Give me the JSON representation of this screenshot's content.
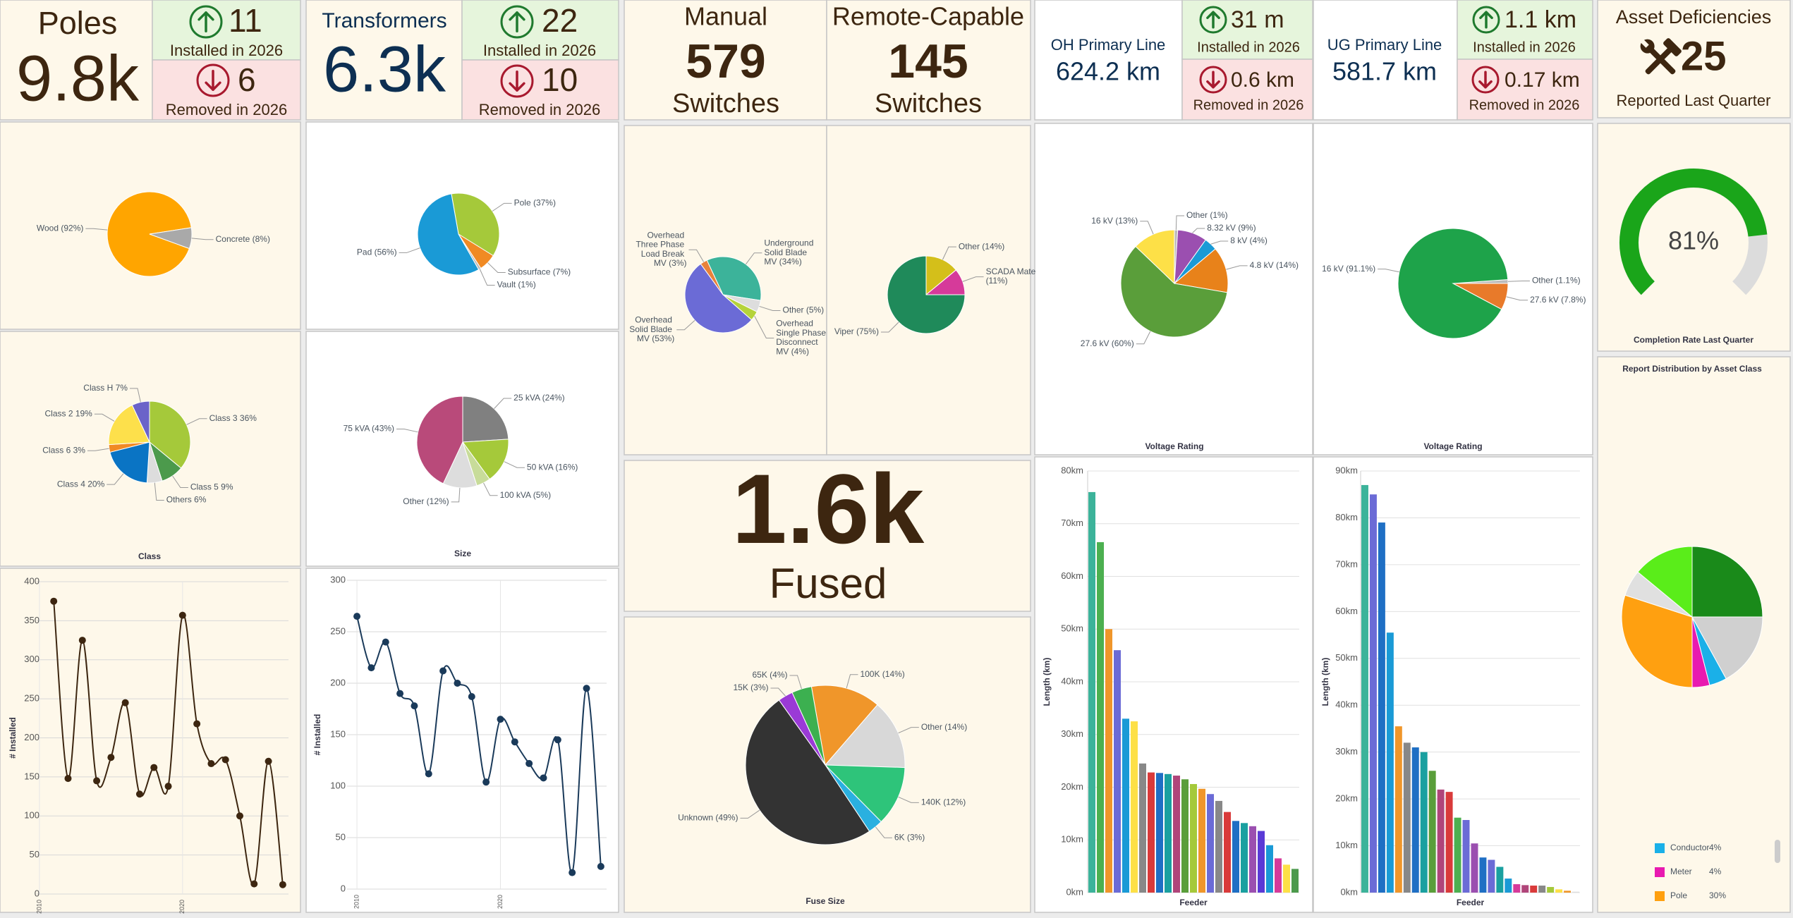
{
  "kpis": {
    "poles": {
      "title": "Poles",
      "total": "9.8k",
      "installed": 11,
      "installed_label": "Installed in 2026",
      "removed": 6,
      "removed_label": "Removed in 2026"
    },
    "transformers": {
      "title": "Transformers",
      "total": "6.3k",
      "installed": 22,
      "installed_label": "Installed in 2026",
      "removed": 10,
      "removed_label": "Removed in 2026"
    },
    "switches": {
      "manual": {
        "title": "Manual",
        "count": 579,
        "unit": "Switches"
      },
      "remote": {
        "title": "Remote-Capable",
        "count": 145,
        "unit": "Switches"
      }
    },
    "fused": {
      "count": "1.6k",
      "label": "Fused"
    },
    "oh_line": {
      "title": "OH Primary Line",
      "total": "624.2 km",
      "installed": "31 m",
      "installed_label": "Installed in 2026",
      "removed": "0.6 km",
      "removed_label": "Removed in 2026"
    },
    "ug_line": {
      "title": "UG Primary Line",
      "total": "581.7 km",
      "installed": "1.1 km",
      "installed_label": "Installed in 2026",
      "removed": "0.17 km",
      "removed_label": "Removed in 2026"
    },
    "deficiencies": {
      "title": "Asset Deficiencies",
      "count": 25,
      "label": "Reported Last Quarter"
    }
  },
  "chart_data": [
    {
      "type": "pie",
      "categories": [
        "Wood (92%)",
        "Concrete (8%)"
      ],
      "values": [
        92,
        8
      ],
      "colors": [
        "#ffa500",
        "#a9a9a9"
      ]
    },
    {
      "type": "pie",
      "title": "Class",
      "categories": [
        "Class 3 36%",
        "Class 5 9%",
        "Others 6%",
        "Class 4 20%",
        "Class 6 3%",
        "Class 2 19%",
        "Class H 7%"
      ],
      "values": [
        36,
        9,
        6,
        20,
        3,
        19,
        7
      ],
      "colors": [
        "#a5c93a",
        "#4c9a4c",
        "#dddddd",
        "#0a74c4",
        "#f08a24",
        "#fde04b",
        "#6b63c9"
      ]
    },
    {
      "type": "line",
      "ylabel": "# Installed",
      "x": [
        2011,
        2012,
        2013,
        2014,
        2015,
        2016,
        2017,
        2018,
        2019,
        2020,
        2021,
        2022,
        2023,
        2024,
        2025,
        2026,
        2027
      ],
      "values": [
        375,
        148,
        325,
        145,
        175,
        245,
        128,
        162,
        138,
        357,
        218,
        167,
        172,
        100,
        13,
        170,
        12
      ],
      "color": "#3d2610",
      "xlim": [
        2010.3,
        2027.4
      ],
      "xticks": [
        2010,
        2020
      ],
      "ylim": [
        0,
        400
      ],
      "yticks": [
        0,
        50,
        100,
        150,
        200,
        250,
        300,
        350,
        400
      ],
      "grid": true
    },
    {
      "type": "pie",
      "categories": [
        "Pole (37%)",
        "Subsurface (7%)",
        "Vault (1%)",
        "Pad (56%)"
      ],
      "values": [
        37,
        7,
        1,
        56
      ],
      "colors": [
        "#a5c93a",
        "#f08a24",
        "#bbbbbb",
        "#1a9ad6"
      ]
    },
    {
      "type": "pie",
      "title": "Size",
      "categories": [
        "25 kVA (24%)",
        "50 kVA (16%)",
        "100 kVA (5%)",
        "Other (12%)",
        "75 kVA (43%)"
      ],
      "values": [
        24,
        16,
        5,
        12,
        43
      ],
      "colors": [
        "#808080",
        "#a5c93a",
        "#c8dc9a",
        "#dddddd",
        "#b94a7a"
      ]
    },
    {
      "type": "line",
      "ylabel": "# Installed",
      "x": [
        2010,
        2011,
        2012,
        2013,
        2014,
        2015,
        2016,
        2017,
        2018,
        2019,
        2020,
        2021,
        2022,
        2023,
        2024,
        2025,
        2026,
        2027
      ],
      "values": [
        265,
        215,
        240,
        190,
        178,
        112,
        212,
        200,
        187,
        104,
        165,
        143,
        122,
        108,
        145,
        16,
        195,
        22
      ],
      "color": "#1a3a5a",
      "xlim": [
        2009.8,
        2027.4
      ],
      "xticks": [
        2010,
        2020
      ],
      "ylim": [
        0,
        300
      ],
      "yticks": [
        0,
        50,
        100,
        150,
        200,
        250,
        300
      ],
      "grid": true
    },
    {
      "type": "pie",
      "categories": [
        "Underground Solid Blade MV (34%)",
        "Other (5%)",
        "Overhead Single Phase Disconnect MV (4%)",
        "Overhead Solid Blade MV (53%)",
        "Overhead Three Phase Load Break MV (3%)"
      ],
      "values": [
        34,
        5,
        4,
        53,
        3
      ],
      "colors": [
        "#3cb39a",
        "#dddddd",
        "#b5d33a",
        "#6b6bd6",
        "#e8823a"
      ]
    },
    {
      "type": "pie",
      "categories": [
        "Other (14%)",
        "SCADA Mate (11%)",
        "Viper (75%)"
      ],
      "values": [
        14,
        11,
        75
      ],
      "colors": [
        "#d4bf1a",
        "#d63a9a",
        "#1f8a5a"
      ]
    },
    {
      "type": "pie",
      "title": "Fuse Size",
      "categories": [
        "100K (14%)",
        "Other (14%)",
        "140K (12%)",
        "6K (3%)",
        "Unknown (49%)",
        "15K (3%)",
        "65K (4%)"
      ],
      "values": [
        14,
        14,
        12,
        3,
        49,
        3,
        4
      ],
      "colors": [
        "#f0962a",
        "#d8d8d8",
        "#2ec47a",
        "#2ab0e0",
        "#333333",
        "#9a3ad6",
        "#3cb050"
      ]
    },
    {
      "type": "pie",
      "title": "Voltage Rating",
      "categories": [
        "Other (1%)",
        "8.32 kV (9%)",
        "8 kV (4%)",
        "4.8 kV (14%)",
        "27.6 kV (60%)",
        "16 kV (13%)"
      ],
      "values": [
        1,
        9,
        4,
        14,
        60,
        13
      ],
      "colors": [
        "#bbbbbb",
        "#9b4fb0",
        "#1a9ad6",
        "#e8821a",
        "#5a9e3a",
        "#fde047"
      ]
    },
    {
      "type": "pie",
      "title": "Voltage Rating",
      "categories": [
        "Other (1.1%)",
        "27.6 kV (7.8%)",
        "16 kV (91.1%)"
      ],
      "values": [
        1.1,
        7.8,
        91.1
      ],
      "colors": [
        "#bbbbbb",
        "#e87a2a",
        "#1ea34a"
      ]
    },
    {
      "type": "bar",
      "ylabel": "Length (km)",
      "xlabel": "Feeder",
      "categories": [
        null,
        null,
        null,
        null,
        null,
        null,
        null,
        null,
        null,
        null,
        null,
        null,
        null,
        null,
        null,
        null,
        null,
        null,
        null,
        null,
        null,
        null,
        null,
        null,
        null
      ],
      "values": [
        76000,
        66500,
        50000,
        46000,
        33000,
        32500,
        24500,
        22800,
        22700,
        22500,
        22200,
        21500,
        20600,
        19700,
        18700,
        17400,
        15300,
        13600,
        13200,
        12600,
        11700,
        9000,
        6500,
        5300,
        4500
      ],
      "colors": [
        "#3cb39a",
        "#4cb050",
        "#f0962a",
        "#6b6bd6",
        "#1a9ad6",
        "#fde047",
        "#888888",
        "#d93a3a",
        "#1f6fc4",
        "#1aa0a0",
        "#b0457a",
        "#5a9e3a",
        "#a5c93a",
        "#f0962a",
        "#6b6bd6",
        "#888888",
        "#d93a3a",
        "#1f6fc4",
        "#1aa0a0",
        "#9b4fb0",
        "#5a3ad6",
        "#1a9ad6",
        "#d63a9a",
        "#fde047",
        "#4c9a4c"
      ],
      "ylim": [
        0,
        80000
      ],
      "yticks": [
        {
          "value": 0,
          "label": "0km"
        },
        {
          "value": 10000,
          "label": "10km"
        },
        {
          "value": 20000,
          "label": "20km"
        },
        {
          "value": 30000,
          "label": "30km"
        },
        {
          "value": 40000,
          "label": "40km"
        },
        {
          "value": 50000,
          "label": "50km"
        },
        {
          "value": 60000,
          "label": "60km"
        },
        {
          "value": 70000,
          "label": "70km"
        },
        {
          "value": 80000,
          "label": "80km"
        }
      ],
      "grid": true
    },
    {
      "type": "bar",
      "ylabel": "Length (km)",
      "xlabel": "Feeder",
      "categories": [
        null,
        null,
        null,
        null,
        null,
        null,
        null,
        null,
        null,
        null,
        null,
        null,
        null,
        null,
        null,
        null,
        null,
        null,
        null,
        null,
        null,
        null,
        null,
        null,
        null,
        null
      ],
      "values": [
        87000,
        85000,
        79000,
        55500,
        35500,
        32000,
        31000,
        30000,
        26000,
        22000,
        21500,
        16000,
        15500,
        10500,
        7500,
        7000,
        5500,
        3000,
        1800,
        1600,
        1500,
        1500,
        1200,
        700,
        400,
        200
      ],
      "colors": [
        "#3cb39a",
        "#6b6bd6",
        "#1f6fc4",
        "#1a9ad6",
        "#f0962a",
        "#888888",
        "#1f6fc4",
        "#1aa0a0",
        "#5a9e3a",
        "#b0457a",
        "#d93a3a",
        "#4cb050",
        "#6b6bd6",
        "#9b4fb0",
        "#1f6fc4",
        "#6b6bd6",
        "#1aa0a0",
        "#1a9ad6",
        "#d63a9a",
        "#b0457a",
        "#d93a3a",
        "#888888",
        "#a5c93a",
        "#fde047",
        "#f0962a",
        "#dddddd"
      ],
      "ylim": [
        0,
        90000
      ],
      "yticks": [
        {
          "value": 0,
          "label": "0km"
        },
        {
          "value": 10000,
          "label": "10km"
        },
        {
          "value": 20000,
          "label": "20km"
        },
        {
          "value": 30000,
          "label": "30km"
        },
        {
          "value": 40000,
          "label": "40km"
        },
        {
          "value": 50000,
          "label": "50km"
        },
        {
          "value": 60000,
          "label": "60km"
        },
        {
          "value": 70000,
          "label": "70km"
        },
        {
          "value": 80000,
          "label": "80km"
        },
        {
          "value": 90000,
          "label": "90km"
        }
      ],
      "grid": true
    },
    {
      "type": "gauge",
      "title": "Completion Rate Last Quarter",
      "value": 81,
      "value_label": "81%",
      "ylim": [
        0,
        100
      ],
      "color": "#1aa51a",
      "track_color": "#dcdcdc"
    },
    {
      "type": "pie",
      "title": "Report Distribution by Asset Class",
      "legend": "bottom",
      "categories": [
        null,
        null,
        "Conductor",
        "Meter",
        "Pole",
        null,
        null
      ],
      "values": [
        25,
        17,
        4,
        4,
        30,
        6,
        14
      ],
      "value_labels": [
        null,
        null,
        "4%",
        "4%",
        "30%",
        null,
        null
      ],
      "colors": [
        "#1a8a1a",
        "#d0d0d0",
        "#1ab0e8",
        "#e81ab0",
        "#ffa010",
        "#e0e0e0",
        "#5aed1a"
      ]
    }
  ]
}
